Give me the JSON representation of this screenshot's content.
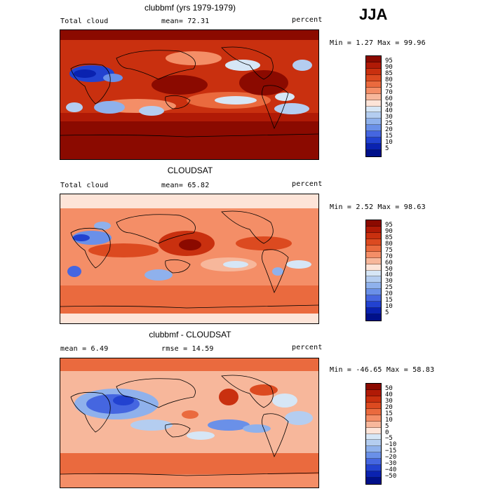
{
  "season": "JJA",
  "panels": [
    {
      "title": "clubbmf (yrs 1979-1979)",
      "left_label": "Total cloud",
      "mid_label": "mean=  72.31",
      "units": "percent",
      "minmax": "Min =   1.27 Max =  99.96",
      "levels": [
        "95",
        "90",
        "85",
        "80",
        "75",
        "70",
        "60",
        "50",
        "40",
        "30",
        "25",
        "20",
        "15",
        "10",
        "5"
      ],
      "colors": [
        "#8b0a00",
        "#b01a06",
        "#c9300f",
        "#dc4a20",
        "#ea6a3e",
        "#f48e67",
        "#f7b79b",
        "#fde4d8",
        "#d6e6f6",
        "#b4cdf0",
        "#8fb1ec",
        "#6a90e8",
        "#4566e0",
        "#2242d0",
        "#0a22b0",
        "#00108a"
      ]
    },
    {
      "title": "CLOUDSAT",
      "left_label": "Total cloud",
      "mid_label": "mean=  65.82",
      "units": "percent",
      "minmax": "Min =   2.52 Max =  98.63",
      "levels": [
        "95",
        "90",
        "85",
        "80",
        "75",
        "70",
        "60",
        "50",
        "40",
        "30",
        "25",
        "20",
        "15",
        "10",
        "5"
      ],
      "colors": [
        "#8b0a00",
        "#b01a06",
        "#c9300f",
        "#dc4a20",
        "#ea6a3e",
        "#f48e67",
        "#f7b79b",
        "#fde4d8",
        "#d6e6f6",
        "#b4cdf0",
        "#8fb1ec",
        "#6a90e8",
        "#4566e0",
        "#2242d0",
        "#0a22b0",
        "#00108a"
      ]
    },
    {
      "title": "clubbmf - CLOUDSAT",
      "left_label": "mean =   6.49",
      "mid_label": "rmse =  14.59",
      "units": "percent",
      "minmax": "Min = -46.65 Max =  58.83",
      "levels": [
        "50",
        "40",
        "30",
        "20",
        "15",
        "10",
        "5",
        "0",
        "−5",
        "−10",
        "−15",
        "−20",
        "−30",
        "−40",
        "−50"
      ],
      "colors": [
        "#8b0a00",
        "#b01a06",
        "#c9300f",
        "#dc4a20",
        "#ea6a3e",
        "#f48e67",
        "#f7b79b",
        "#fde4d8",
        "#d6e6f6",
        "#b4cdf0",
        "#8fb1ec",
        "#6a90e8",
        "#4566e0",
        "#2242d0",
        "#0a22b0",
        "#00108a"
      ]
    }
  ]
}
